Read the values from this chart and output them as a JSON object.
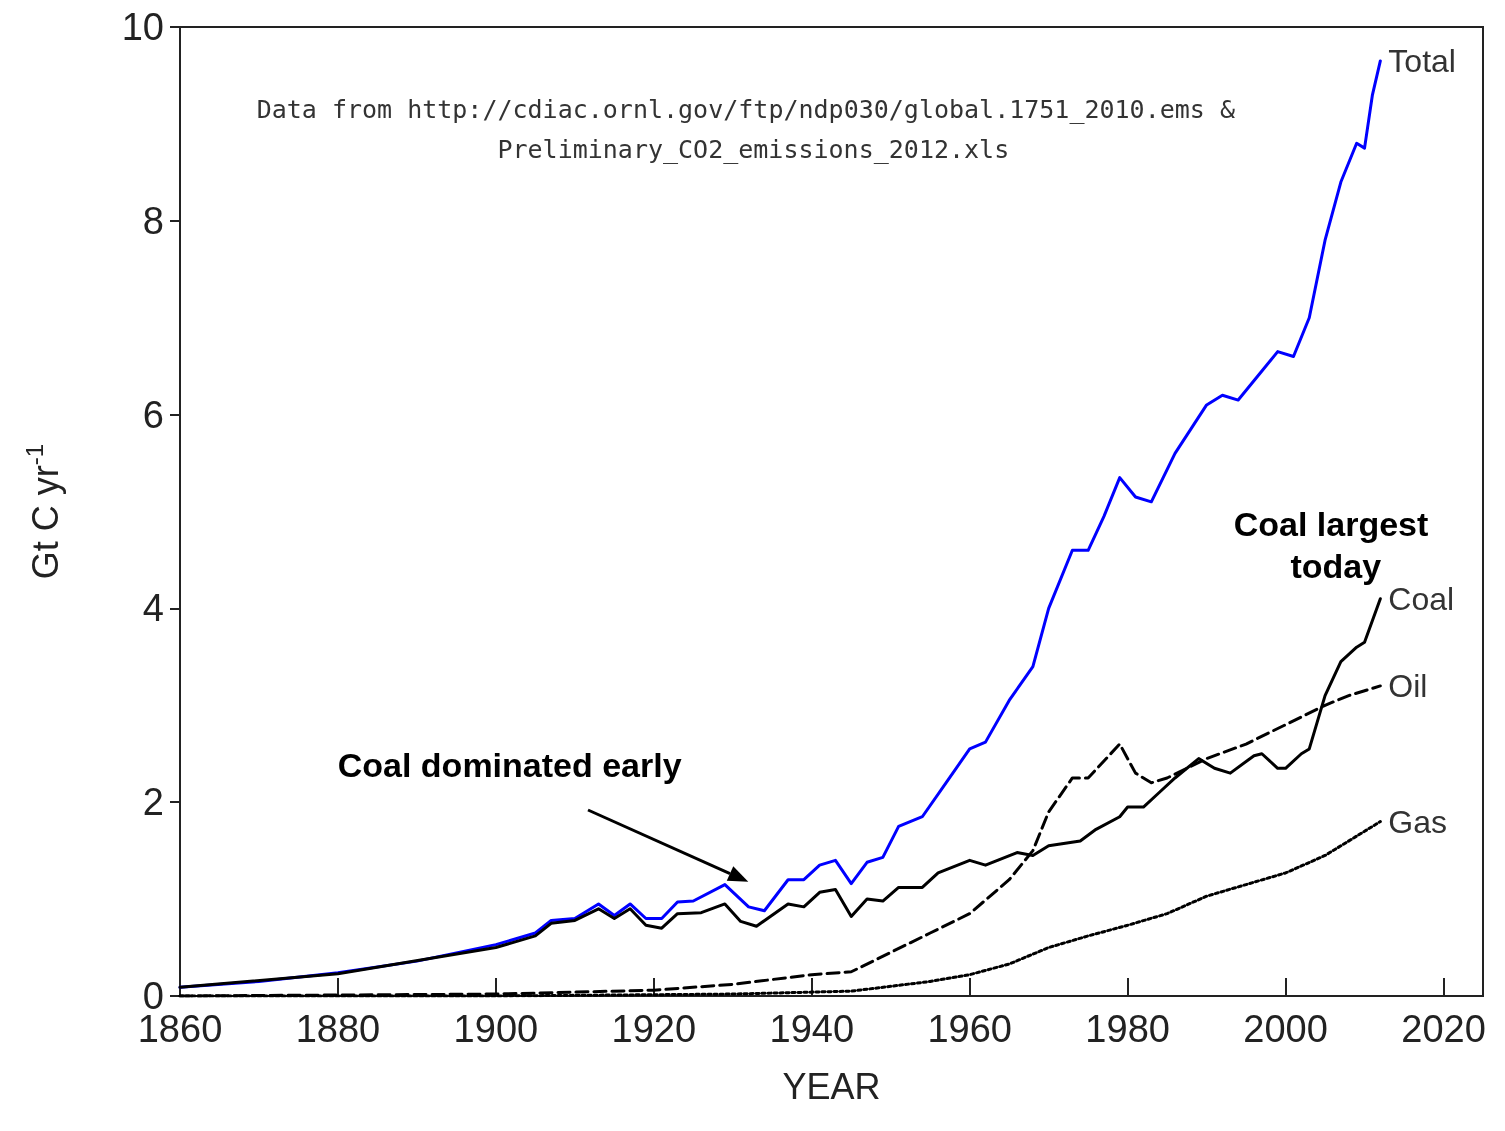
{
  "chart_data": {
    "type": "line",
    "xlabel": "YEAR",
    "ylabel": "Gt C yr$^{-1}$",
    "xlim": [
      1860,
      2025
    ],
    "xticks": [
      1860,
      1880,
      1900,
      1920,
      1940,
      1960,
      1980,
      2000,
      2020
    ],
    "ylim": [
      0,
      10
    ],
    "yticks": [
      0,
      2,
      4,
      6,
      8,
      10
    ],
    "grid": false,
    "marker": "none",
    "annotations": [
      "Data from http://cdiac.ornl.gov/ftp/ndp030/global.1751_2010.ems & Preliminary_CO2_emissions_2012.xls",
      "Coal dominated early",
      "Coal largest today"
    ],
    "series": [
      {
        "name": "Total",
        "color": "#0000ff",
        "line_style": "solid",
        "x": [
          1860,
          1870,
          1880,
          1890,
          1900,
          1905,
          1907,
          1910,
          1913,
          1915,
          1917,
          1919,
          1921,
          1923,
          1925,
          1929,
          1932,
          1934,
          1937,
          1939,
          1941,
          1943,
          1945,
          1947,
          1949,
          1951,
          1954,
          1957,
          1960,
          1962,
          1965,
          1968,
          1970,
          1973,
          1975,
          1977,
          1979,
          1981,
          1983,
          1986,
          1988,
          1990,
          1992,
          1994,
          1997,
          1999,
          2001,
          2003,
          2005,
          2007,
          2009,
          2010,
          2011,
          2012
        ],
        "values": [
          0.09,
          0.15,
          0.24,
          0.36,
          0.53,
          0.65,
          0.78,
          0.8,
          0.95,
          0.83,
          0.95,
          0.8,
          0.8,
          0.97,
          0.98,
          1.15,
          0.92,
          0.88,
          1.2,
          1.2,
          1.35,
          1.4,
          1.16,
          1.38,
          1.43,
          1.75,
          1.85,
          2.2,
          2.55,
          2.62,
          3.05,
          3.4,
          4.0,
          4.6,
          4.6,
          4.95,
          5.35,
          5.15,
          5.1,
          5.6,
          5.85,
          6.1,
          6.2,
          6.15,
          6.45,
          6.65,
          6.6,
          7.0,
          7.8,
          8.4,
          8.8,
          8.75,
          9.3,
          9.65
        ]
      },
      {
        "name": "Coal",
        "color": "#000000",
        "line_style": "solid",
        "x": [
          1860,
          1880,
          1900,
          1905,
          1907,
          1910,
          1913,
          1915,
          1917,
          1919,
          1921,
          1923,
          1926,
          1929,
          1931,
          1933,
          1937,
          1939,
          1941,
          1943,
          1945,
          1947,
          1949,
          1951,
          1954,
          1956,
          1960,
          1962,
          1966,
          1968,
          1970,
          1974,
          1976,
          1979,
          1980,
          1982,
          1984,
          1986,
          1989,
          1991,
          1993,
          1996,
          1997,
          1999,
          2000,
          2002,
          2003,
          2005,
          2007,
          2009,
          2010,
          2012
        ],
        "values": [
          0.09,
          0.23,
          0.5,
          0.62,
          0.75,
          0.78,
          0.9,
          0.8,
          0.9,
          0.73,
          0.7,
          0.85,
          0.86,
          0.95,
          0.77,
          0.72,
          0.95,
          0.92,
          1.07,
          1.1,
          0.82,
          1.0,
          0.98,
          1.12,
          1.12,
          1.27,
          1.4,
          1.35,
          1.48,
          1.45,
          1.55,
          1.6,
          1.72,
          1.85,
          1.95,
          1.95,
          2.1,
          2.25,
          2.45,
          2.35,
          2.3,
          2.48,
          2.5,
          2.35,
          2.35,
          2.5,
          2.55,
          3.1,
          3.45,
          3.6,
          3.65,
          4.1
        ]
      },
      {
        "name": "Oil",
        "color": "#000000",
        "line_style": "dashed",
        "x": [
          1860,
          1900,
          1920,
          1930,
          1940,
          1945,
          1950,
          1955,
          1960,
          1965,
          1968,
          1970,
          1973,
          1975,
          1979,
          1981,
          1983,
          1985,
          1990,
          1995,
          2000,
          2005,
          2008,
          2012
        ],
        "values": [
          0,
          0.02,
          0.06,
          0.12,
          0.22,
          0.25,
          0.45,
          0.65,
          0.85,
          1.2,
          1.5,
          1.9,
          2.25,
          2.25,
          2.6,
          2.3,
          2.2,
          2.25,
          2.45,
          2.6,
          2.8,
          3.0,
          3.1,
          3.2
        ]
      },
      {
        "name": "Gas",
        "color": "#000000",
        "line_style": "dotted",
        "x": [
          1860,
          1900,
          1930,
          1945,
          1950,
          1955,
          1960,
          1965,
          1970,
          1975,
          1980,
          1985,
          1990,
          1995,
          2000,
          2005,
          2010,
          2012
        ],
        "values": [
          0,
          0,
          0.02,
          0.05,
          0.1,
          0.15,
          0.22,
          0.33,
          0.5,
          0.62,
          0.73,
          0.85,
          1.03,
          1.15,
          1.27,
          1.45,
          1.7,
          1.8
        ]
      }
    ]
  }
}
